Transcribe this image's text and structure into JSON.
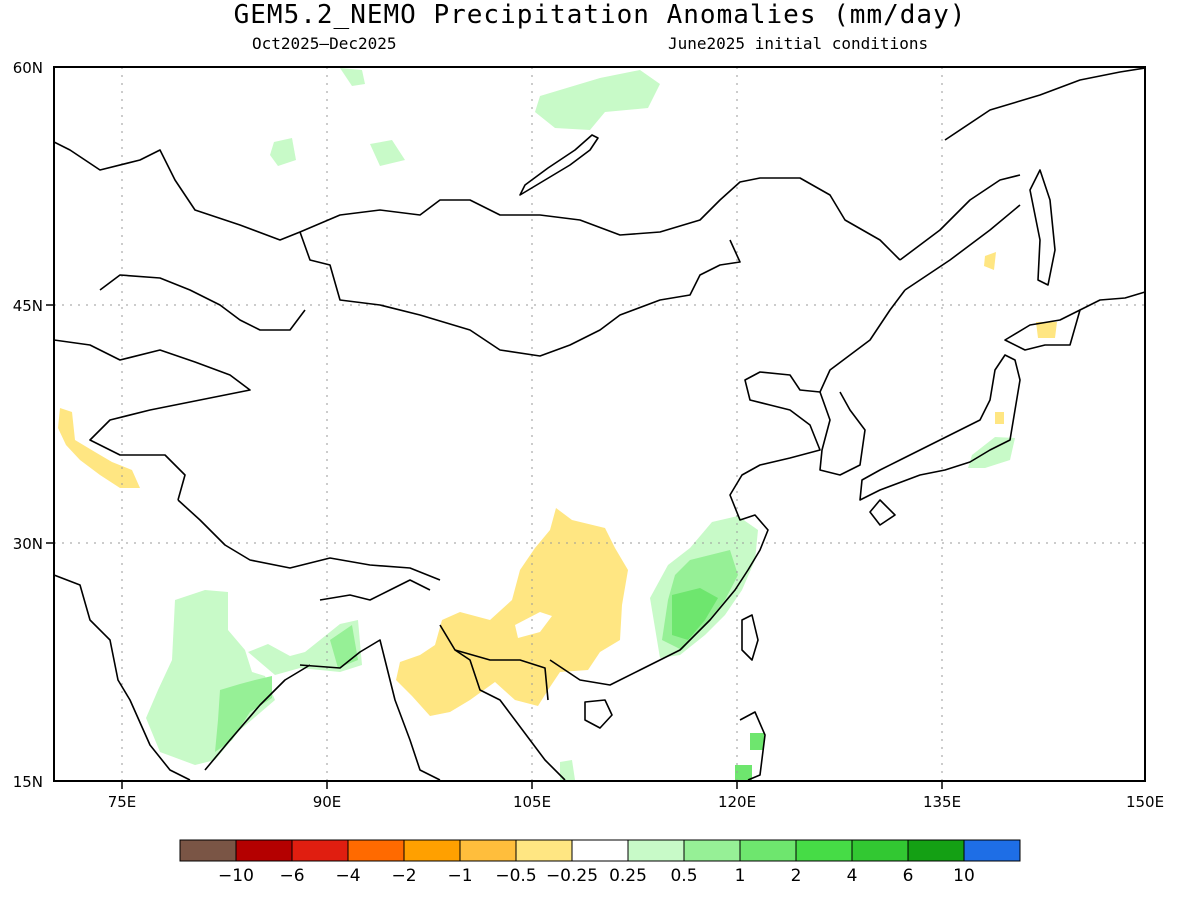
{
  "title": "GEM5.2_NEMO Precipitation Anomalies (mm/day)",
  "subtitle_left": "Oct2025–Dec2025",
  "subtitle_right": "June2025 initial conditions",
  "map": {
    "lon_range": [
      70,
      150
    ],
    "lat_range": [
      15,
      60
    ],
    "x_ticks": [
      {
        "lon": 75,
        "label": "75E"
      },
      {
        "lon": 90,
        "label": "90E"
      },
      {
        "lon": 105,
        "label": "105E"
      },
      {
        "lon": 120,
        "label": "120E"
      },
      {
        "lon": 135,
        "label": "135E"
      },
      {
        "lon": 150,
        "label": "150E"
      }
    ],
    "y_ticks": [
      {
        "lat": 60,
        "label": "60N"
      },
      {
        "lat": 45,
        "label": "45N"
      },
      {
        "lat": 30,
        "label": "30N"
      },
      {
        "lat": 15,
        "label": "15N"
      }
    ],
    "grid": "dotted"
  },
  "colorbar": {
    "colors": [
      "#7a5545",
      "#b40000",
      "#e01e10",
      "#ff6a00",
      "#ffa000",
      "#ffbe3c",
      "#ffe682",
      "#ffffff",
      "#c8fac8",
      "#96f096",
      "#6ee66e",
      "#46dc46",
      "#32c832",
      "#14a014",
      "#1e6ee6"
    ],
    "labels": [
      "−10",
      "−6",
      "−4",
      "−2",
      "−1",
      "−0.5",
      "−0.25",
      "0.25",
      "0.5",
      "1",
      "2",
      "4",
      "6",
      "10"
    ]
  }
}
